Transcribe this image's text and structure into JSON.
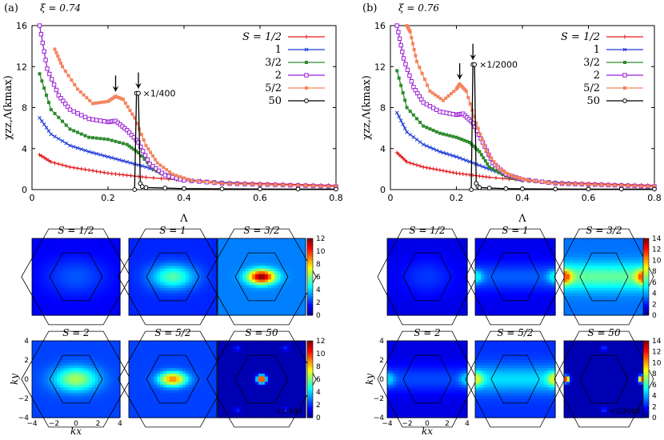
{
  "chart_data": [
    {
      "type": "line",
      "panel_label": "(a)",
      "xi_label": "ξ = 0.74",
      "xlabel": "Λ",
      "ylabel": "χzz,Λ(kmax)",
      "xlim": [
        0,
        0.8
      ],
      "ylim": [
        0,
        16
      ],
      "xticks": [
        "0",
        "0.2",
        "0.4",
        "0.6",
        "0.8"
      ],
      "yticks": [
        "0",
        "4",
        "8",
        "12",
        "16"
      ],
      "legend_title": "S =",
      "scale_note": "×1/400",
      "arrows_at": [
        0.22,
        0.28
      ],
      "series": [
        {
          "name": "S = 1/2",
          "label": "1/2",
          "color": "#e41a1c",
          "marker": "+",
          "x": [
            0.02,
            0.05,
            0.1,
            0.15,
            0.2,
            0.25,
            0.3,
            0.4,
            0.5,
            0.6,
            0.7,
            0.8
          ],
          "values": [
            3.4,
            2.7,
            2.2,
            1.9,
            1.6,
            1.4,
            1.2,
            0.9,
            0.7,
            0.6,
            0.5,
            0.4
          ]
        },
        {
          "name": "S = 1",
          "label": "1",
          "color": "#1f3bd6",
          "marker": "x",
          "x": [
            0.02,
            0.05,
            0.1,
            0.15,
            0.2,
            0.25,
            0.3,
            0.35,
            0.4,
            0.5,
            0.6,
            0.7,
            0.8
          ],
          "values": [
            7.0,
            5.4,
            4.3,
            3.7,
            3.2,
            2.7,
            2.2,
            1.5,
            1.0,
            0.7,
            0.5,
            0.4,
            0.3
          ]
        },
        {
          "name": "S = 3/2",
          "label": "3/2",
          "color": "#2e8b2e",
          "marker": "sq",
          "x": [
            0.02,
            0.05,
            0.1,
            0.15,
            0.2,
            0.25,
            0.28,
            0.32,
            0.36,
            0.4,
            0.5,
            0.6,
            0.7,
            0.8
          ],
          "values": [
            11.3,
            7.8,
            5.9,
            5.1,
            4.9,
            4.4,
            3.6,
            2.0,
            1.2,
            0.9,
            0.6,
            0.5,
            0.4,
            0.3
          ]
        },
        {
          "name": "S = 2",
          "label": "2",
          "color": "#9b1fd6",
          "marker": "osq",
          "x": [
            0.02,
            0.04,
            0.07,
            0.1,
            0.15,
            0.2,
            0.22,
            0.25,
            0.28,
            0.31,
            0.35,
            0.4,
            0.5,
            0.6,
            0.7,
            0.8
          ],
          "values": [
            16,
            11.8,
            9.2,
            7.8,
            6.9,
            6.6,
            6.7,
            5.8,
            4.6,
            2.5,
            1.4,
            0.9,
            0.6,
            0.5,
            0.4,
            0.3
          ]
        },
        {
          "name": "S = 5/2",
          "label": "5/2",
          "color": "#f4845f",
          "marker": "sq",
          "x": [
            0.06,
            0.08,
            0.12,
            0.16,
            0.2,
            0.22,
            0.24,
            0.27,
            0.3,
            0.33,
            0.37,
            0.42,
            0.5,
            0.6,
            0.7,
            0.8
          ],
          "values": [
            13.7,
            12.0,
            9.8,
            8.4,
            8.6,
            9.1,
            8.8,
            7.0,
            4.3,
            2.6,
            1.5,
            0.9,
            0.6,
            0.5,
            0.4,
            0.3
          ]
        },
        {
          "name": "S = 50",
          "label": "50",
          "color": "#000000",
          "marker": "oc",
          "x": [
            0.27,
            0.275,
            0.28,
            0.285,
            0.29,
            0.3,
            0.35,
            0.4,
            0.5,
            0.6,
            0.7,
            0.8
          ],
          "values": [
            0,
            9.4,
            9.4,
            0.6,
            0.3,
            0.2,
            0.15,
            0.1,
            0.08,
            0.06,
            0.05,
            0.05
          ]
        }
      ]
    },
    {
      "type": "line",
      "panel_label": "(b)",
      "xi_label": "ξ = 0.76",
      "xlabel": "Λ",
      "ylabel": "χzz,Λ(kmax)",
      "xlim": [
        0,
        0.8
      ],
      "ylim": [
        0,
        16
      ],
      "xticks": [
        "0",
        "0.2",
        "0.4",
        "0.6",
        "0.8"
      ],
      "yticks": [
        "0",
        "4",
        "8",
        "12",
        "16"
      ],
      "legend_title": "S =",
      "scale_note": "×1/2000",
      "arrows_at": [
        0.21,
        0.25
      ],
      "series": [
        {
          "name": "S = 1/2",
          "label": "1/2",
          "color": "#e41a1c",
          "marker": "+",
          "x": [
            0.02,
            0.05,
            0.1,
            0.15,
            0.2,
            0.25,
            0.3,
            0.4,
            0.5,
            0.6,
            0.7,
            0.8
          ],
          "values": [
            3.6,
            2.7,
            2.2,
            1.9,
            1.6,
            1.4,
            1.2,
            0.9,
            0.7,
            0.6,
            0.5,
            0.4
          ]
        },
        {
          "name": "S = 1",
          "label": "1",
          "color": "#1f3bd6",
          "marker": "x",
          "x": [
            0.02,
            0.05,
            0.1,
            0.15,
            0.2,
            0.25,
            0.3,
            0.35,
            0.4,
            0.5,
            0.6,
            0.7,
            0.8
          ],
          "values": [
            7.5,
            5.6,
            4.4,
            3.7,
            3.2,
            2.6,
            2.0,
            1.4,
            1.0,
            0.7,
            0.5,
            0.4,
            0.3
          ]
        },
        {
          "name": "S = 3/2",
          "label": "3/2",
          "color": "#2e8b2e",
          "marker": "sq",
          "x": [
            0.02,
            0.05,
            0.1,
            0.15,
            0.2,
            0.24,
            0.27,
            0.3,
            0.35,
            0.4,
            0.5,
            0.6,
            0.7,
            0.8
          ],
          "values": [
            11.6,
            8.0,
            6.2,
            5.5,
            5.1,
            4.6,
            3.7,
            2.2,
            1.3,
            0.9,
            0.6,
            0.5,
            0.4,
            0.3
          ]
        },
        {
          "name": "S = 2",
          "label": "2",
          "color": "#9b1fd6",
          "marker": "osq",
          "x": [
            0.02,
            0.04,
            0.07,
            0.1,
            0.15,
            0.2,
            0.22,
            0.25,
            0.28,
            0.31,
            0.35,
            0.4,
            0.5,
            0.6,
            0.7,
            0.8
          ],
          "values": [
            16,
            12.8,
            10.0,
            8.5,
            7.6,
            7.3,
            7.4,
            6.5,
            4.6,
            2.6,
            1.5,
            1.0,
            0.6,
            0.5,
            0.4,
            0.3
          ]
        },
        {
          "name": "S = 5/2",
          "label": "5/2",
          "color": "#f4845f",
          "marker": "sq",
          "x": [
            0.05,
            0.06,
            0.08,
            0.12,
            0.16,
            0.2,
            0.21,
            0.23,
            0.26,
            0.29,
            0.33,
            0.37,
            0.42,
            0.5,
            0.6,
            0.7,
            0.8
          ],
          "values": [
            16,
            15.4,
            12.5,
            9.6,
            8.7,
            9.8,
            10.3,
            9.6,
            6.5,
            3.8,
            2.0,
            1.3,
            0.9,
            0.6,
            0.5,
            0.4,
            0.3
          ]
        },
        {
          "name": "S = 50",
          "label": "50",
          "color": "#000000",
          "marker": "oc",
          "x": [
            0.245,
            0.25,
            0.255,
            0.26,
            0.265,
            0.27,
            0.3,
            0.35,
            0.4,
            0.5,
            0.6,
            0.7,
            0.8
          ],
          "values": [
            0,
            12.2,
            12.2,
            0.6,
            0.3,
            0.2,
            0.15,
            0.1,
            0.08,
            0.06,
            0.05,
            0.05,
            0.05
          ]
        }
      ]
    },
    {
      "type": "heatmap",
      "panel": "(a)",
      "colorbar_ticks": [
        "0",
        "2",
        "4",
        "6",
        "8",
        "10",
        "12"
      ],
      "vmax": 12,
      "xlabel": "kx",
      "ylabel": "ky",
      "ticks": [
        "−4",
        "−2",
        "0",
        "2",
        "4"
      ],
      "maps": [
        {
          "title": "S = 1/2",
          "peak": 2.5,
          "pattern": "center-broad"
        },
        {
          "title": "S = 1",
          "peak": 5.5,
          "pattern": "center"
        },
        {
          "title": "S = 3/2",
          "peak": 12,
          "pattern": "center-sharp"
        },
        {
          "title": "S = 2",
          "peak": 6.5,
          "pattern": "center"
        },
        {
          "title": "S = 5/2",
          "peak": 9,
          "pattern": "center-sharp"
        },
        {
          "title": "S = 50",
          "peak": 12,
          "pattern": "point",
          "note": "×1/400"
        }
      ]
    },
    {
      "type": "heatmap",
      "panel": "(b)",
      "colorbar_ticks": [
        "0",
        "2",
        "4",
        "6",
        "8",
        "10",
        "12",
        "14"
      ],
      "vmax": 14,
      "xlabel": "kx",
      "ylabel": "ky",
      "ticks": [
        "−4",
        "−2",
        "0",
        "2",
        "4"
      ],
      "maps": [
        {
          "title": "S = 1/2",
          "peak": 2.5,
          "pattern": "center-broad"
        },
        {
          "title": "S = 1",
          "peak": 5,
          "pattern": "edges"
        },
        {
          "title": "S = 3/2",
          "peak": 11,
          "pattern": "edges"
        },
        {
          "title": "S = 2",
          "peak": 4.5,
          "pattern": "edges"
        },
        {
          "title": "S = 5/2",
          "peak": 8,
          "pattern": "edges"
        },
        {
          "title": "S = 50",
          "peak": 14,
          "pattern": "edge-points",
          "note": "×1/2000"
        }
      ]
    }
  ]
}
